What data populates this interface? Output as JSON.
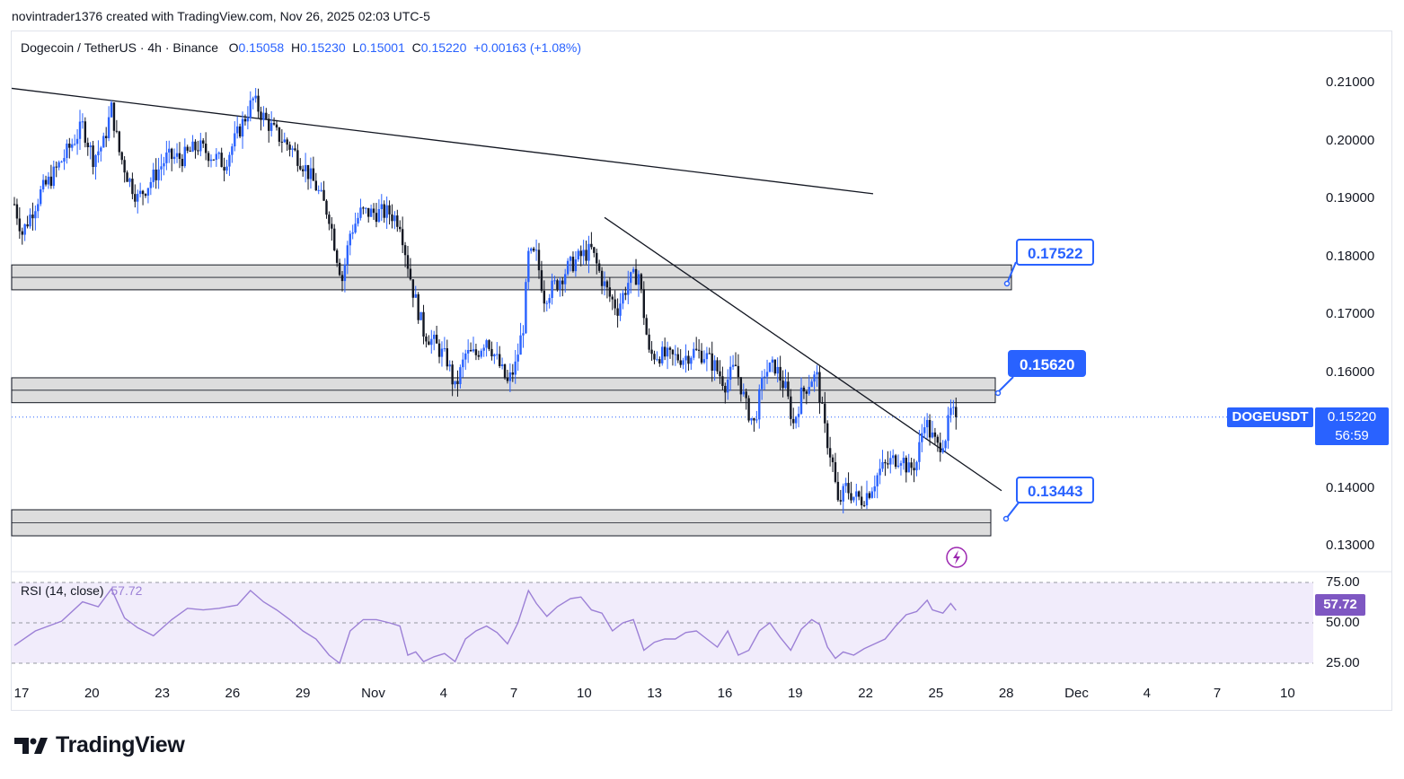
{
  "caption": "novintrader1376 created with TradingView.com, Nov 26, 2025 02:03 UTC-5",
  "legend": {
    "symbol": "Dogecoin / TetherUS · 4h · Binance",
    "o_label": "O",
    "o_value": "0.15058",
    "h_label": "H",
    "h_value": "0.15230",
    "l_label": "L",
    "l_value": "0.15001",
    "c_label": "C",
    "c_value": "0.15220",
    "change": "+0.00163 (+1.08%)"
  },
  "price_axis": [
    "0.21000",
    "0.20000",
    "0.19000",
    "0.18000",
    "0.17000",
    "0.16000",
    "0.14000",
    "0.13000"
  ],
  "symbol_tag": "DOGEUSDT",
  "last_price": "0.15220",
  "countdown": "56:59",
  "rsi": {
    "label": "RSI (14, close)",
    "value": "57.72",
    "axis": [
      "75.00",
      "50.00",
      "25.00"
    ]
  },
  "callouts": {
    "upper": "0.17522",
    "middle": "0.15620",
    "lower": "0.13443"
  },
  "x_axis": [
    "17",
    "20",
    "23",
    "26",
    "29",
    "Nov",
    "4",
    "7",
    "10",
    "13",
    "16",
    "19",
    "22",
    "25",
    "28",
    "Dec",
    "4",
    "7",
    "10"
  ],
  "brand": "TradingView",
  "colors": {
    "up": "#2962ff",
    "down": "#131722",
    "zone_fill": "#d9d9d9",
    "rsi_line": "#9c80d6",
    "rsi_band": "#f1ecfb",
    "accent": "#2962ff"
  },
  "chart_data": {
    "type": "candlestick",
    "timeframe": "4h",
    "price_range": [
      0.127,
      0.2135
    ],
    "zones": [
      {
        "low": 0.1742,
        "high": 0.1785
      },
      {
        "low": 0.1547,
        "high": 0.159
      },
      {
        "low": 0.1317,
        "high": 0.1362
      }
    ],
    "trendlines": [
      {
        "from": [
          "Oct 17",
          0.209
        ],
        "to": [
          "Nov 20",
          0.1908
        ]
      },
      {
        "from": [
          "Nov 10",
          0.1867
        ],
        "to": [
          "Nov 27",
          0.1395
        ]
      }
    ],
    "price_path": [
      [
        0,
        0.189
      ],
      [
        3,
        0.184
      ],
      [
        6,
        0.187
      ],
      [
        10,
        0.191
      ],
      [
        14,
        0.1935
      ],
      [
        20,
        0.198
      ],
      [
        26,
        0.2025
      ],
      [
        30,
        0.197
      ],
      [
        34,
        0.1995
      ],
      [
        37,
        0.2055
      ],
      [
        40,
        0.198
      ],
      [
        43,
        0.194
      ],
      [
        47,
        0.19
      ],
      [
        52,
        0.193
      ],
      [
        58,
        0.197
      ],
      [
        64,
        0.197
      ],
      [
        70,
        0.199
      ],
      [
        75,
        0.1975
      ],
      [
        80,
        0.196
      ],
      [
        86,
        0.202
      ],
      [
        91,
        0.207
      ],
      [
        95,
        0.204
      ],
      [
        100,
        0.201
      ],
      [
        105,
        0.199
      ],
      [
        110,
        0.196
      ],
      [
        115,
        0.192
      ],
      [
        120,
        0.187
      ],
      [
        123,
        0.18
      ],
      [
        125,
        0.176
      ],
      [
        128,
        0.184
      ],
      [
        132,
        0.1875
      ],
      [
        138,
        0.1875
      ],
      [
        143,
        0.1875
      ],
      [
        147,
        0.186
      ],
      [
        149,
        0.181
      ],
      [
        152,
        0.174
      ],
      [
        156,
        0.167
      ],
      [
        160,
        0.165
      ],
      [
        165,
        0.162
      ],
      [
        168,
        0.157
      ],
      [
        172,
        0.163
      ],
      [
        176,
        0.163
      ],
      [
        180,
        0.166
      ],
      [
        184,
        0.162
      ],
      [
        188,
        0.158
      ],
      [
        191,
        0.161
      ],
      [
        194,
        0.168
      ],
      [
        196,
        0.18
      ],
      [
        199,
        0.18
      ],
      [
        202,
        0.173
      ],
      [
        207,
        0.1755
      ],
      [
        211,
        0.178
      ],
      [
        216,
        0.18
      ],
      [
        220,
        0.181
      ],
      [
        224,
        0.176
      ],
      [
        227,
        0.173
      ],
      [
        230,
        0.171
      ],
      [
        234,
        0.1755
      ],
      [
        238,
        0.177
      ],
      [
        242,
        0.163
      ],
      [
        246,
        0.163
      ],
      [
        250,
        0.1625
      ],
      [
        255,
        0.1625
      ],
      [
        259,
        0.1635
      ],
      [
        263,
        0.163
      ],
      [
        267,
        0.161
      ],
      [
        271,
        0.158
      ],
      [
        275,
        0.161
      ],
      [
        279,
        0.154
      ],
      [
        282,
        0.151
      ],
      [
        286,
        0.16
      ],
      [
        290,
        0.161
      ],
      [
        294,
        0.157
      ],
      [
        297,
        0.151
      ],
      [
        300,
        0.156
      ],
      [
        304,
        0.159
      ],
      [
        306,
        0.159
      ],
      [
        309,
        0.15
      ],
      [
        312,
        0.144
      ],
      [
        314,
        0.137
      ],
      [
        317,
        0.14
      ],
      [
        320,
        0.1385
      ],
      [
        323,
        0.138
      ],
      [
        326,
        0.1395
      ],
      [
        330,
        0.143
      ],
      [
        334,
        0.1445
      ],
      [
        338,
        0.1455
      ],
      [
        341,
        0.143
      ],
      [
        344,
        0.1445
      ],
      [
        347,
        0.152
      ],
      [
        349,
        0.1495
      ],
      [
        352,
        0.147
      ],
      [
        355,
        0.149
      ],
      [
        357,
        0.153
      ],
      [
        359,
        0.1522
      ]
    ],
    "rsi_path": [
      [
        0,
        36
      ],
      [
        8,
        45
      ],
      [
        18,
        51
      ],
      [
        26,
        63
      ],
      [
        32,
        60
      ],
      [
        37,
        71
      ],
      [
        42,
        53
      ],
      [
        47,
        47
      ],
      [
        53,
        42
      ],
      [
        60,
        52
      ],
      [
        66,
        59
      ],
      [
        72,
        58
      ],
      [
        78,
        59
      ],
      [
        85,
        61
      ],
      [
        90,
        70
      ],
      [
        95,
        63
      ],
      [
        100,
        58
      ],
      [
        105,
        52
      ],
      [
        110,
        45
      ],
      [
        115,
        40
      ],
      [
        120,
        30
      ],
      [
        124,
        25
      ],
      [
        128,
        45
      ],
      [
        133,
        52
      ],
      [
        138,
        52
      ],
      [
        143,
        50
      ],
      [
        147,
        48
      ],
      [
        150,
        30
      ],
      [
        153,
        32
      ],
      [
        156,
        26
      ],
      [
        160,
        29
      ],
      [
        164,
        31
      ],
      [
        168,
        26
      ],
      [
        172,
        40
      ],
      [
        176,
        45
      ],
      [
        180,
        48
      ],
      [
        184,
        44
      ],
      [
        188,
        37
      ],
      [
        192,
        50
      ],
      [
        196,
        70
      ],
      [
        199,
        62
      ],
      [
        203,
        54
      ],
      [
        207,
        60
      ],
      [
        212,
        65
      ],
      [
        216,
        66
      ],
      [
        220,
        58
      ],
      [
        224,
        56
      ],
      [
        228,
        45
      ],
      [
        232,
        50
      ],
      [
        236,
        52
      ],
      [
        240,
        33
      ],
      [
        244,
        38
      ],
      [
        248,
        40
      ],
      [
        252,
        40
      ],
      [
        256,
        44
      ],
      [
        260,
        45
      ],
      [
        264,
        40
      ],
      [
        268,
        35
      ],
      [
        272,
        45
      ],
      [
        276,
        30
      ],
      [
        280,
        33
      ],
      [
        284,
        45
      ],
      [
        288,
        50
      ],
      [
        292,
        41
      ],
      [
        296,
        33
      ],
      [
        300,
        46
      ],
      [
        304,
        52
      ],
      [
        307,
        49
      ],
      [
        310,
        35
      ],
      [
        313,
        28
      ],
      [
        316,
        32
      ],
      [
        320,
        30
      ],
      [
        324,
        34
      ],
      [
        328,
        37
      ],
      [
        332,
        40
      ],
      [
        336,
        48
      ],
      [
        340,
        55
      ],
      [
        344,
        57
      ],
      [
        348,
        64
      ],
      [
        350,
        58
      ],
      [
        354,
        56
      ],
      [
        357,
        62
      ],
      [
        359,
        57.72
      ]
    ]
  }
}
